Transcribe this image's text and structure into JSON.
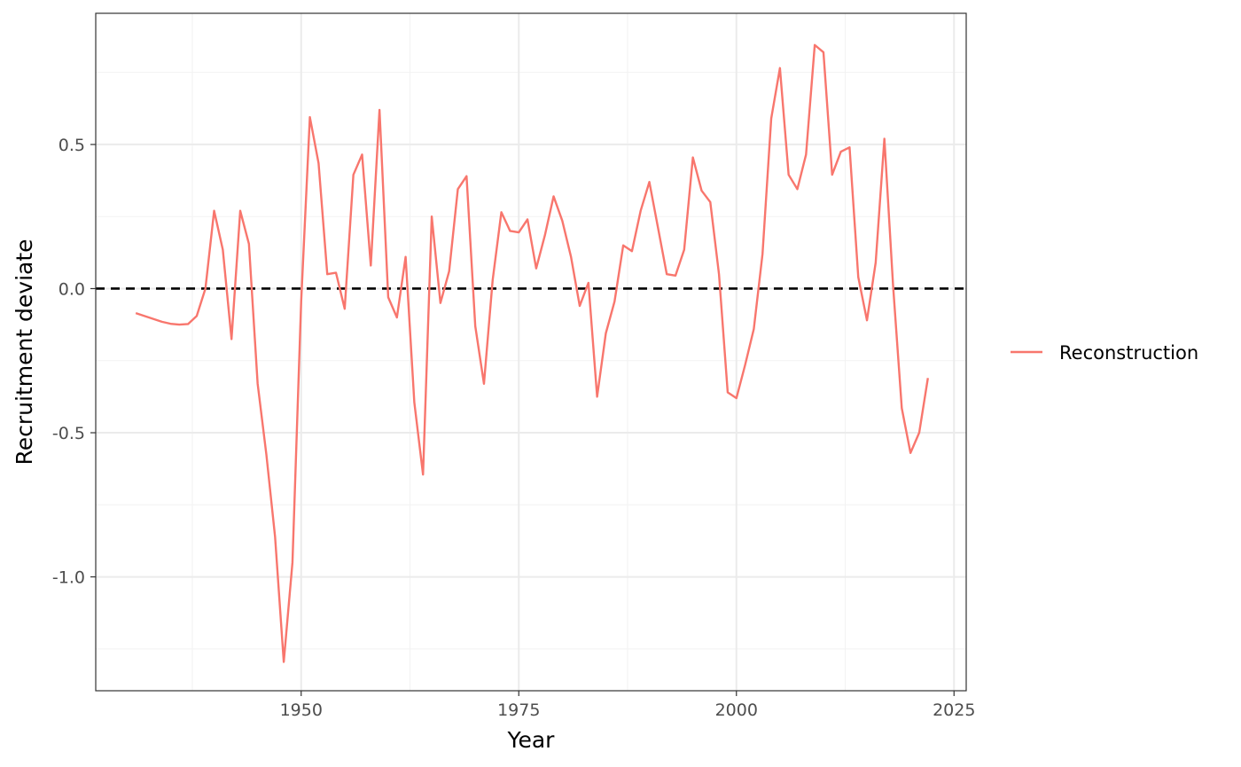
{
  "chart_data": {
    "type": "line",
    "xlabel": "Year",
    "ylabel": "Recruitment deviate",
    "xlim": [
      1926.4,
      2026.4
    ],
    "ylim": [
      -1.395,
      0.955
    ],
    "x_ticks": [
      1950,
      1975,
      2000,
      2025
    ],
    "x_tick_labels": [
      "1950",
      "1975",
      "2000",
      "2025"
    ],
    "y_ticks": [
      -1.0,
      -0.5,
      0.0,
      0.5
    ],
    "y_tick_labels": [
      "-1.0",
      "-0.5",
      "0.0",
      "0.5"
    ],
    "grid": true,
    "reference_line": {
      "y": 0,
      "style": "dashed",
      "color": "#000000"
    },
    "legend": {
      "position": "right",
      "entries": [
        "Reconstruction"
      ]
    },
    "series": [
      {
        "name": "Reconstruction",
        "color": "#F8766D",
        "x": [
          1931,
          1932,
          1933,
          1934,
          1935,
          1936,
          1937,
          1938,
          1939,
          1940,
          1941,
          1942,
          1943,
          1944,
          1945,
          1946,
          1947,
          1948,
          1949,
          1950,
          1951,
          1952,
          1953,
          1954,
          1955,
          1956,
          1957,
          1958,
          1959,
          1960,
          1961,
          1962,
          1963,
          1964,
          1965,
          1966,
          1967,
          1968,
          1969,
          1970,
          1971,
          1972,
          1973,
          1974,
          1975,
          1976,
          1977,
          1978,
          1979,
          1980,
          1981,
          1982,
          1983,
          1984,
          1985,
          1986,
          1987,
          1988,
          1989,
          1990,
          1991,
          1992,
          1993,
          1994,
          1995,
          1996,
          1997,
          1998,
          1999,
          2000,
          2001,
          2002,
          2003,
          2004,
          2005,
          2006,
          2007,
          2008,
          2009,
          2010,
          2011,
          2012,
          2013,
          2014,
          2015,
          2016,
          2017,
          2018,
          2019,
          2020,
          2021,
          2022
        ],
        "y": [
          -0.085,
          -0.095,
          -0.105,
          -0.115,
          -0.122,
          -0.125,
          -0.123,
          -0.095,
          0.0,
          0.27,
          0.135,
          -0.175,
          0.27,
          0.155,
          -0.33,
          -0.575,
          -0.86,
          -1.295,
          -0.95,
          -0.045,
          0.595,
          0.435,
          0.05,
          0.055,
          -0.07,
          0.395,
          0.465,
          0.08,
          0.62,
          -0.03,
          -0.1,
          0.11,
          -0.395,
          -0.645,
          0.25,
          -0.05,
          0.06,
          0.345,
          0.39,
          -0.13,
          -0.33,
          0.03,
          0.265,
          0.2,
          0.195,
          0.24,
          0.07,
          0.185,
          0.32,
          0.235,
          0.11,
          -0.06,
          0.02,
          -0.375,
          -0.155,
          -0.045,
          0.15,
          0.13,
          0.27,
          0.37,
          0.21,
          0.05,
          0.045,
          0.135,
          0.455,
          0.34,
          0.3,
          0.05,
          -0.36,
          -0.38,
          -0.265,
          -0.14,
          0.12,
          0.59,
          0.765,
          0.395,
          0.345,
          0.465,
          0.845,
          0.82,
          0.395,
          0.475,
          0.49,
          0.04,
          -0.11,
          0.09,
          0.52,
          0.01,
          -0.415,
          -0.57,
          -0.5,
          -0.31
        ]
      }
    ]
  }
}
